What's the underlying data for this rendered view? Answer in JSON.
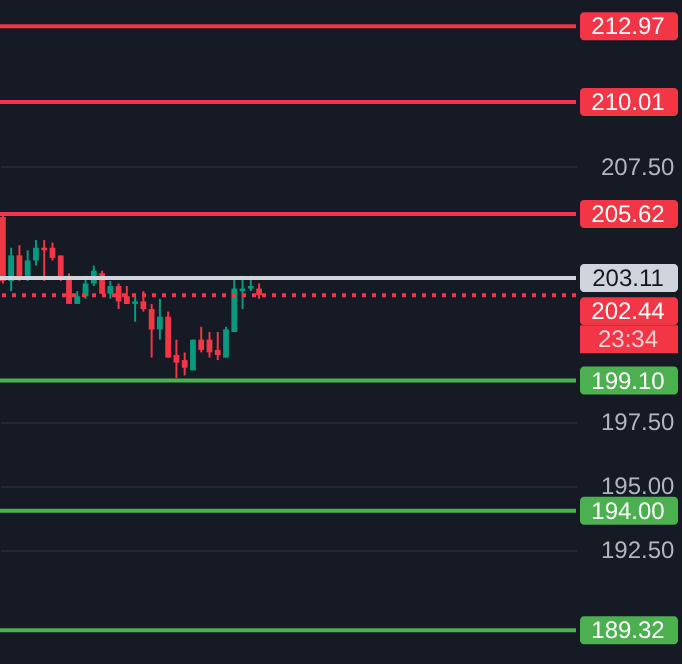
{
  "chart_data": {
    "type": "candlestick",
    "categories": [
      null,
      null,
      null,
      null,
      null,
      null,
      null,
      null,
      null,
      null,
      null,
      null,
      null,
      null,
      null,
      null,
      null,
      null,
      null,
      null,
      null,
      null,
      null,
      null,
      null,
      null,
      null,
      null,
      null,
      null,
      null,
      null,
      null,
      null,
      null,
      null,
      null,
      null,
      null,
      null,
      null,
      null,
      null,
      null,
      null,
      null,
      null,
      null,
      null,
      null,
      null,
      null,
      null,
      null,
      null,
      null,
      null,
      null,
      null,
      null,
      null,
      null,
      null,
      null,
      null,
      null,
      null,
      null,
      null,
      null
    ],
    "ohlc": [
      [
        205.5,
        205.6,
        202.9,
        203.0
      ],
      [
        203.0,
        204.3,
        202.6,
        204.0
      ],
      [
        204.0,
        204.4,
        203.0,
        203.2
      ],
      [
        203.2,
        204.2,
        203.0,
        203.8
      ],
      [
        203.8,
        204.6,
        203.6,
        204.3
      ],
      [
        204.3,
        204.6,
        203.0,
        204.2
      ],
      [
        204.3,
        204.5,
        203.8,
        203.9
      ],
      [
        204.0,
        204.0,
        203.0,
        203.1
      ],
      [
        203.2,
        203.3,
        202.1,
        202.1
      ],
      [
        202.1,
        202.6,
        202.1,
        202.4
      ],
      [
        202.4,
        203.2,
        202.3,
        202.9
      ],
      [
        202.9,
        203.6,
        202.8,
        203.4
      ],
      [
        203.3,
        203.4,
        202.5,
        202.5
      ],
      [
        202.5,
        203.0,
        202.3,
        202.8
      ],
      [
        202.8,
        202.9,
        201.9,
        202.2
      ],
      [
        202.4,
        202.8,
        202.1,
        202.1
      ],
      [
        202.1,
        202.4,
        201.4,
        202.2
      ],
      [
        202.2,
        202.6,
        201.8,
        201.9
      ],
      [
        201.9,
        202.1,
        200.0,
        201.1
      ],
      [
        201.1,
        202.3,
        200.7,
        201.6
      ],
      [
        201.6,
        201.8,
        200.0,
        200.0
      ],
      [
        200.1,
        200.7,
        199.2,
        199.8
      ],
      [
        199.9,
        200.2,
        199.3,
        199.6
      ],
      [
        199.5,
        200.7,
        199.5,
        200.7
      ],
      [
        200.7,
        201.2,
        200.2,
        200.3
      ],
      [
        200.7,
        201.0,
        200.0,
        200.2
      ],
      [
        200.3,
        201.0,
        199.9,
        200.1
      ],
      [
        200.0,
        201.2,
        200.0,
        201.1
      ],
      [
        201.0,
        203.1,
        201.0,
        202.7
      ],
      [
        202.6,
        203.2,
        201.9,
        202.7
      ],
      [
        202.7,
        203.2,
        202.6,
        202.8
      ],
      [
        202.7,
        202.9,
        202.3,
        202.44
      ],
      null,
      null,
      null,
      null,
      null,
      null,
      null,
      null,
      null,
      null,
      null,
      null,
      null,
      null,
      null,
      null,
      null,
      null,
      null,
      null,
      null,
      null,
      null,
      null,
      null,
      null,
      null,
      null,
      null,
      null,
      null,
      null,
      null,
      null,
      null,
      null,
      null,
      null
    ],
    "colors": [
      "#f23645",
      "#089981",
      "#f23645",
      "#089981",
      "#089981",
      "#f23645",
      "#f23645",
      "#f23645",
      "#f23645",
      "#089981",
      "#089981",
      "#089981",
      "#f23645",
      "#089981",
      "#f23645",
      "#f23645",
      "#089981",
      "#f23645",
      "#f23645",
      "#089981",
      "#f23645",
      "#f23645",
      "#f23645",
      "#089981",
      "#f23645",
      "#f23645",
      "#f23645",
      "#089981",
      "#089981",
      "#089981",
      "#089981",
      "#f23645",
      null,
      null,
      null,
      null,
      null,
      null,
      null,
      null,
      null,
      null,
      null,
      null,
      null,
      null,
      null,
      null,
      null,
      null,
      null,
      null,
      null,
      null,
      null,
      null,
      null,
      null,
      null,
      null,
      null,
      null,
      null,
      null,
      null,
      null,
      null,
      null,
      null,
      null
    ],
    "ylim": [
      188,
      214
    ],
    "yticks": [
      {
        "value": 192.5,
        "label": "192.50"
      },
      {
        "value": 195,
        "label": "195.00"
      },
      {
        "value": 197.5,
        "label": "197.50"
      },
      {
        "value": 207.5,
        "label": "207.50"
      }
    ],
    "grid": "y",
    "tick_labels": "y",
    "ref_lines": [
      {
        "axis": "y",
        "value": 212.97,
        "label": "212.97",
        "color": "#f23645",
        "line_style": "solid"
      },
      {
        "axis": "y",
        "value": 210.01,
        "label": "210.01",
        "color": "#f23645",
        "line_style": "solid"
      },
      {
        "axis": "y",
        "value": 205.62,
        "label": "205.62",
        "color": "#f23645",
        "line_style": "solid"
      },
      {
        "axis": "y",
        "value": 203.11,
        "label": "203.11",
        "color": "#d1d4dc",
        "line_style": "solid"
      },
      {
        "axis": "y",
        "value": 202.44,
        "label": "202.44",
        "color": "#f23645",
        "line_style": "dotted"
      },
      {
        "axis": "y",
        "value": 199.1,
        "label": "199.10",
        "color": "#4caf50",
        "line_style": "solid"
      },
      {
        "axis": "y",
        "value": 194.0,
        "label": "194.00",
        "color": "#4caf50",
        "line_style": "solid"
      },
      {
        "axis": "y",
        "value": 189.32,
        "label": "189.32",
        "color": "#4caf50",
        "line_style": "solid"
      }
    ],
    "annotations": [
      "23:34"
    ]
  }
}
